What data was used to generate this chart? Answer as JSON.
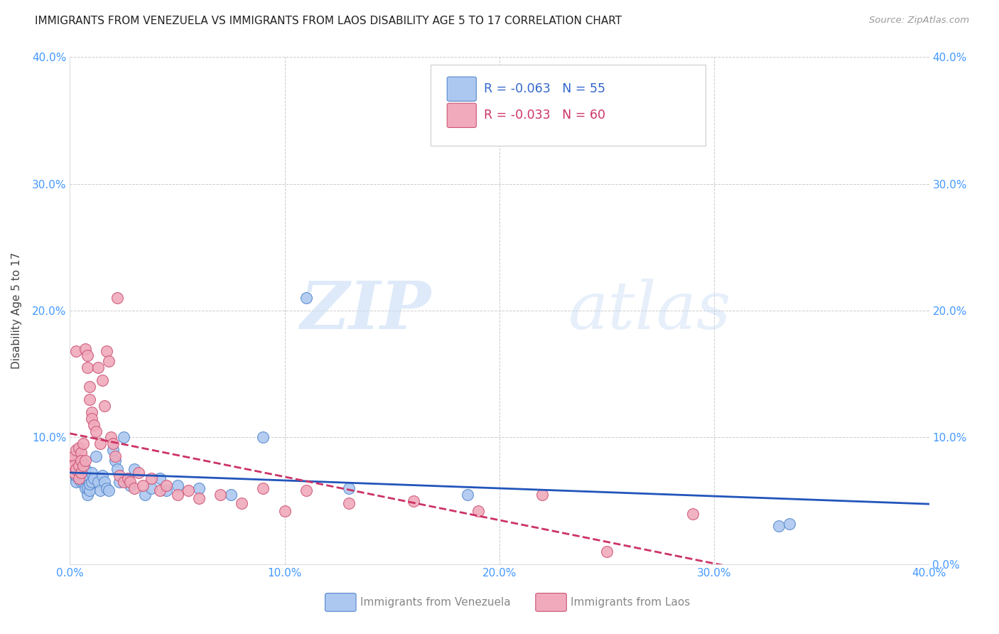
{
  "title": "IMMIGRANTS FROM VENEZUELA VS IMMIGRANTS FROM LAOS DISABILITY AGE 5 TO 17 CORRELATION CHART",
  "source": "Source: ZipAtlas.com",
  "ylabel": "Disability Age 5 to 17",
  "xlim": [
    0.0,
    0.4
  ],
  "ylim": [
    0.0,
    0.4
  ],
  "xticks": [
    0.0,
    0.1,
    0.2,
    0.3,
    0.4
  ],
  "yticks": [
    0.0,
    0.1,
    0.2,
    0.3,
    0.4
  ],
  "xtick_labels": [
    "0.0%",
    "10.0%",
    "20.0%",
    "30.0%",
    "40.0%"
  ],
  "ytick_labels": [
    "0.0%",
    "10.0%",
    "20.0%",
    "30.0%",
    "40.0%"
  ],
  "venezuela_color": "#adc8f0",
  "laos_color": "#f0aabb",
  "venezuela_edge": "#5588cc",
  "laos_edge": "#cc5577",
  "trend_venezuela_color": "#2255bb",
  "trend_laos_color": "#cc3366",
  "R_venezuela": -0.063,
  "N_venezuela": 55,
  "R_laos": -0.033,
  "N_laos": 60,
  "legend_label_venezuela": "Immigrants from Venezuela",
  "legend_label_laos": "Immigrants from Laos",
  "watermark_zip": "ZIP",
  "watermark_atlas": "atlas",
  "background_color": "#ffffff",
  "grid_color": "#cccccc",
  "venezuela_x": [
    0.001,
    0.001,
    0.002,
    0.002,
    0.003,
    0.003,
    0.003,
    0.004,
    0.004,
    0.004,
    0.005,
    0.005,
    0.005,
    0.005,
    0.006,
    0.006,
    0.006,
    0.007,
    0.007,
    0.007,
    0.008,
    0.008,
    0.009,
    0.009,
    0.01,
    0.01,
    0.011,
    0.012,
    0.013,
    0.014,
    0.015,
    0.016,
    0.017,
    0.018,
    0.02,
    0.021,
    0.022,
    0.023,
    0.025,
    0.027,
    0.028,
    0.03,
    0.035,
    0.038,
    0.042,
    0.045,
    0.05,
    0.06,
    0.075,
    0.09,
    0.11,
    0.13,
    0.185,
    0.33,
    0.335
  ],
  "venezuela_y": [
    0.08,
    0.075,
    0.078,
    0.072,
    0.068,
    0.065,
    0.07,
    0.075,
    0.072,
    0.068,
    0.078,
    0.074,
    0.065,
    0.07,
    0.08,
    0.072,
    0.065,
    0.075,
    0.068,
    0.06,
    0.055,
    0.06,
    0.058,
    0.063,
    0.065,
    0.072,
    0.068,
    0.085,
    0.065,
    0.058,
    0.07,
    0.065,
    0.06,
    0.058,
    0.09,
    0.082,
    0.075,
    0.065,
    0.1,
    0.068,
    0.062,
    0.075,
    0.055,
    0.06,
    0.068,
    0.058,
    0.062,
    0.06,
    0.055,
    0.1,
    0.21,
    0.06,
    0.055,
    0.03,
    0.032
  ],
  "laos_x": [
    0.001,
    0.001,
    0.002,
    0.002,
    0.002,
    0.003,
    0.003,
    0.003,
    0.004,
    0.004,
    0.004,
    0.005,
    0.005,
    0.005,
    0.006,
    0.006,
    0.007,
    0.007,
    0.008,
    0.008,
    0.009,
    0.009,
    0.01,
    0.01,
    0.011,
    0.012,
    0.013,
    0.014,
    0.015,
    0.016,
    0.017,
    0.018,
    0.019,
    0.02,
    0.021,
    0.022,
    0.023,
    0.025,
    0.027,
    0.028,
    0.03,
    0.032,
    0.034,
    0.038,
    0.042,
    0.045,
    0.05,
    0.055,
    0.06,
    0.07,
    0.08,
    0.09,
    0.1,
    0.11,
    0.13,
    0.16,
    0.19,
    0.22,
    0.25,
    0.29
  ],
  "laos_y": [
    0.082,
    0.078,
    0.085,
    0.078,
    0.072,
    0.168,
    0.09,
    0.075,
    0.092,
    0.078,
    0.068,
    0.088,
    0.082,
    0.072,
    0.095,
    0.078,
    0.17,
    0.082,
    0.165,
    0.155,
    0.14,
    0.13,
    0.12,
    0.115,
    0.11,
    0.105,
    0.155,
    0.095,
    0.145,
    0.125,
    0.168,
    0.16,
    0.1,
    0.095,
    0.085,
    0.21,
    0.07,
    0.065,
    0.068,
    0.065,
    0.06,
    0.072,
    0.062,
    0.068,
    0.058,
    0.062,
    0.055,
    0.058,
    0.052,
    0.055,
    0.048,
    0.06,
    0.042,
    0.058,
    0.048,
    0.05,
    0.042,
    0.055,
    0.01,
    0.04
  ]
}
